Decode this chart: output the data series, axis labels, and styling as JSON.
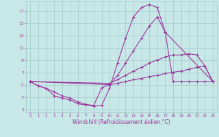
{
  "bg_color": "#c8e8e8",
  "grid_color": "#a0c8c8",
  "line_color": "#993399",
  "marker": "+",
  "marker_size": 3.5,
  "line_width": 0.8,
  "xlabel": "Windchill (Refroidissement éolien,°C)",
  "xlabel_fontsize": 5.5,
  "ylabel_ticks": [
    1,
    3,
    5,
    7,
    9,
    11,
    13,
    15,
    17
  ],
  "xlim": [
    -0.5,
    23.5
  ],
  "ylim": [
    0.5,
    18.5
  ],
  "xticks": [
    0,
    1,
    2,
    3,
    4,
    5,
    6,
    7,
    8,
    9,
    10,
    11,
    12,
    13,
    14,
    15,
    16,
    17,
    18,
    19,
    20,
    21,
    22,
    23
  ],
  "series": [
    {
      "x": [
        0,
        1,
        2,
        3,
        4,
        5,
        6,
        7,
        8,
        9,
        10,
        11,
        12,
        13,
        14,
        15,
        16,
        17,
        18,
        19,
        20,
        21,
        22,
        23
      ],
      "y": [
        5.5,
        4.8,
        4.4,
        3.2,
        2.8,
        2.5,
        1.9,
        1.7,
        1.5,
        1.6,
        4.5,
        8.5,
        12.5,
        16.0,
        17.5,
        18.0,
        17.5,
        13.5,
        5.5,
        5.5,
        5.5,
        5.5,
        5.5,
        5.5
      ]
    },
    {
      "x": [
        0,
        10,
        11,
        12,
        13,
        14,
        15,
        16,
        17,
        23
      ],
      "y": [
        5.5,
        5.0,
        6.5,
        8.5,
        10.5,
        12.5,
        14.5,
        16.0,
        13.5,
        5.5
      ]
    },
    {
      "x": [
        0,
        10,
        11,
        12,
        13,
        14,
        15,
        16,
        17,
        18,
        19,
        20,
        21,
        22,
        23
      ],
      "y": [
        5.5,
        5.2,
        5.8,
        6.5,
        7.2,
        7.8,
        8.5,
        9.0,
        9.5,
        9.8,
        9.8,
        10.0,
        9.8,
        8.0,
        5.5
      ]
    },
    {
      "x": [
        0,
        1,
        2,
        3,
        4,
        5,
        6,
        7,
        8,
        9,
        10,
        11,
        12,
        13,
        14,
        15,
        16,
        17,
        18,
        19,
        20,
        21,
        22,
        23
      ],
      "y": [
        5.5,
        4.8,
        4.4,
        3.8,
        3.2,
        2.8,
        2.2,
        1.8,
        1.6,
        4.5,
        5.0,
        5.2,
        5.5,
        5.8,
        6.0,
        6.3,
        6.5,
        6.8,
        7.0,
        7.2,
        7.5,
        7.8,
        8.0,
        5.5
      ]
    }
  ]
}
